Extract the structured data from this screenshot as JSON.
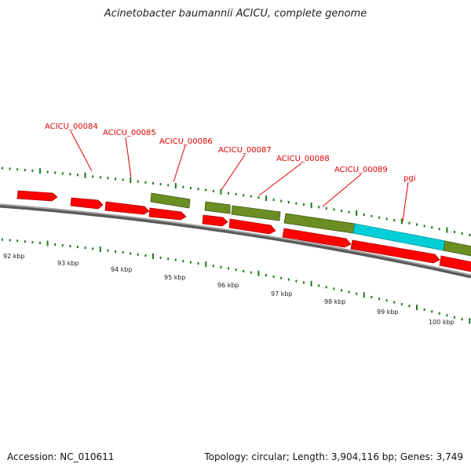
{
  "title": "Acinetobacter baumannii ACICU, complete genome",
  "accession": "Accession: NC_010611",
  "summary": "Topology: circular; Length: 3,904,116 bp; Genes: 3,749",
  "colors": {
    "cds_red": "#ff0000",
    "cds_olive": "#6b8e23",
    "cds_cyan": "#00cfd8",
    "gc_tick": "#1a7a1a",
    "backbone": "#808080",
    "label": "#e00000"
  },
  "gene_labels": [
    "ACICU_00084",
    "ACICU_00085",
    "ACICU_00086",
    "ACICU_00087",
    "ACICU_00088",
    "ACICU_00089",
    "pgi"
  ],
  "kbp_labels": [
    "92 kbp",
    "93 kbp",
    "94 kbp",
    "95 kbp",
    "96 kbp",
    "97 kbp",
    "98 kbp",
    "99 kbp",
    "100 kbp"
  ]
}
